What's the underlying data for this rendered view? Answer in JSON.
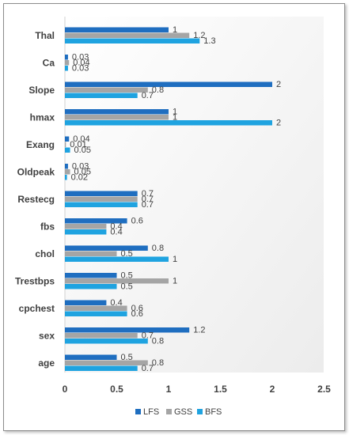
{
  "chart_data": {
    "type": "bar",
    "orientation": "horizontal",
    "categories": [
      "Thal",
      "Ca",
      "Slope",
      "hmax",
      "Exang",
      "Oldpeak",
      "Restecg",
      "fbs",
      "chol",
      "Trestbps",
      "cpchest",
      "sex",
      "age"
    ],
    "series": [
      {
        "name": "LFS",
        "color": "#1f6ec0",
        "values": [
          1,
          0.03,
          2,
          1,
          0.04,
          0.03,
          0.7,
          0.6,
          0.8,
          0.5,
          0.4,
          1.2,
          0.5
        ],
        "labels": [
          "1",
          "0.03",
          "2",
          "1",
          "0.04",
          "0.03",
          "0.7",
          "0.6",
          "0.8",
          "0.5",
          "0.4",
          "1.2",
          "0.5"
        ]
      },
      {
        "name": "GSS",
        "color": "#a5a5a5",
        "values": [
          1.2,
          0.04,
          0.8,
          1,
          0.01,
          0.05,
          0.7,
          0.4,
          0.5,
          1,
          0.6,
          0.7,
          0.8
        ],
        "labels": [
          "1.2",
          "0.04",
          "0.8",
          "1",
          "0.01",
          "0.05",
          "0.7",
          "0.4",
          "0.5",
          "1",
          "0.6",
          "0.7",
          "0.8"
        ]
      },
      {
        "name": "BFS",
        "color": "#1fa3e0",
        "values": [
          1.3,
          0.03,
          0.7,
          2,
          0.05,
          0.02,
          0.7,
          0.4,
          1,
          0.5,
          0.6,
          0.8,
          0.7
        ],
        "labels": [
          "1.3",
          "0.03",
          "0.7",
          "2",
          "0.05",
          "0.02",
          "0.7",
          "0.4",
          "1",
          "0.5",
          "0.6",
          "0.8",
          "0.7"
        ]
      }
    ],
    "xticks": [
      "0",
      "0.5",
      "1",
      "1.5",
      "2",
      "2.5"
    ],
    "xlim": [
      0,
      2.5
    ],
    "grid": false,
    "legend_position": "bottom"
  }
}
